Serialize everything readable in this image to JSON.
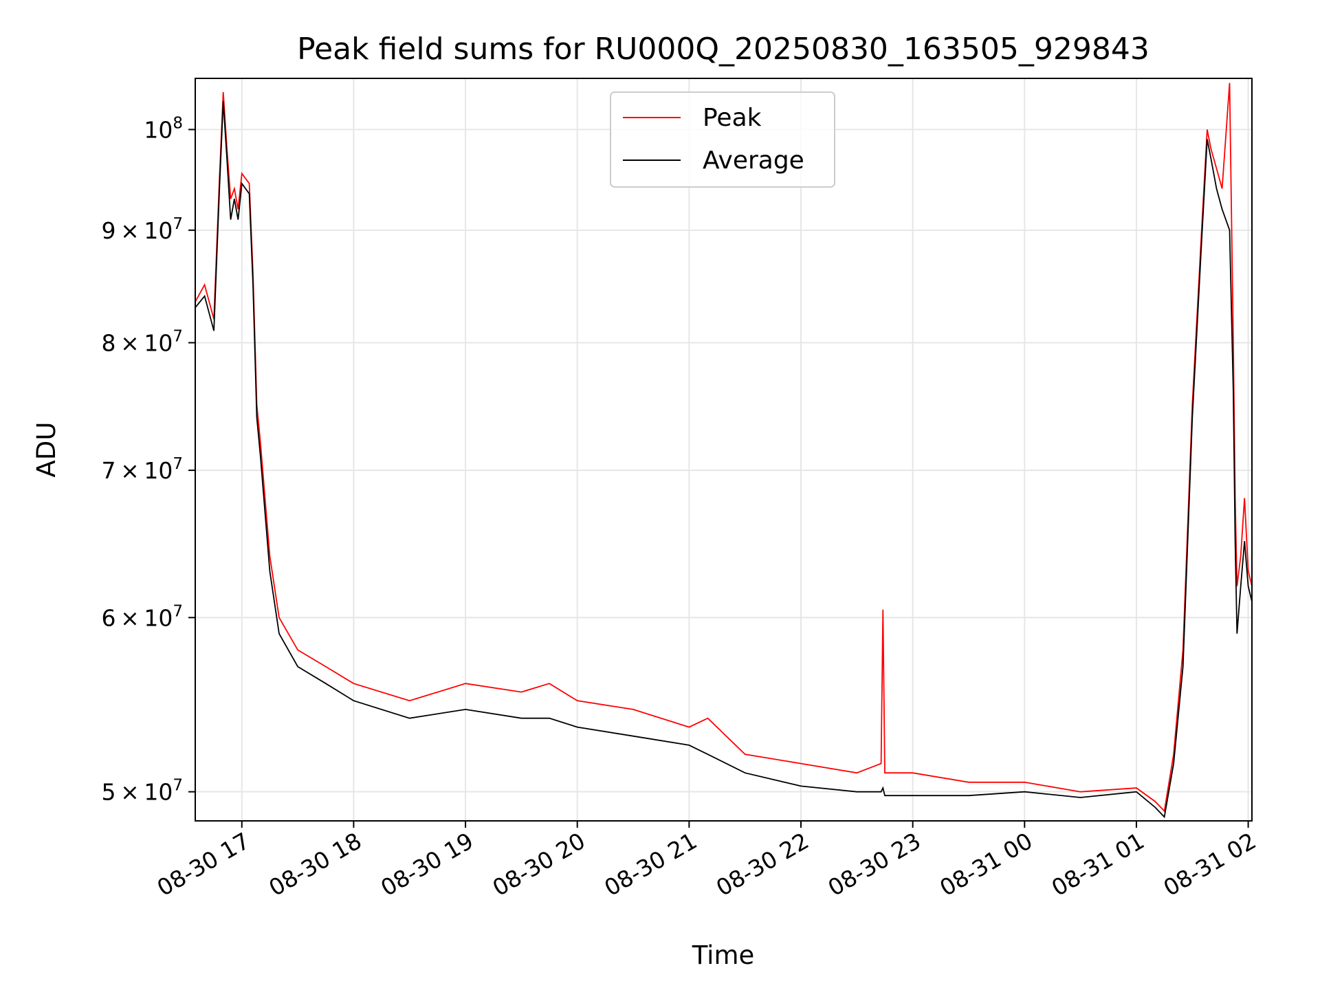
{
  "chart_data": {
    "type": "line",
    "title": "Peak field sums for RU000Q_20250830_163505_929843",
    "xlabel": "Time",
    "ylabel": "ADU",
    "x_scale": "time",
    "y_scale": "log",
    "xlim": [
      "2025-08-30 16:35",
      "2025-08-31 02:02"
    ],
    "ylim": [
      48500000,
      105500000
    ],
    "x_ticks": [
      {
        "value": "2025-08-30 17:00",
        "label": "08-30 17"
      },
      {
        "value": "2025-08-30 18:00",
        "label": "08-30 18"
      },
      {
        "value": "2025-08-30 19:00",
        "label": "08-30 19"
      },
      {
        "value": "2025-08-30 20:00",
        "label": "08-30 20"
      },
      {
        "value": "2025-08-30 21:00",
        "label": "08-30 21"
      },
      {
        "value": "2025-08-30 22:00",
        "label": "08-30 22"
      },
      {
        "value": "2025-08-30 23:00",
        "label": "08-30 23"
      },
      {
        "value": "2025-08-31 00:00",
        "label": "08-31 00"
      },
      {
        "value": "2025-08-31 01:00",
        "label": "08-31 01"
      },
      {
        "value": "2025-08-31 02:00",
        "label": "08-31 02"
      }
    ],
    "y_ticks": [
      {
        "value": 50000000,
        "coef": "5",
        "exp": "7"
      },
      {
        "value": 60000000,
        "coef": "6",
        "exp": "7"
      },
      {
        "value": 70000000,
        "coef": "7",
        "exp": "7"
      },
      {
        "value": 80000000,
        "coef": "8",
        "exp": "7"
      },
      {
        "value": 90000000,
        "coef": "9",
        "exp": "7"
      },
      {
        "value": 100000000,
        "coef": "",
        "exp": "8"
      }
    ],
    "grid": true,
    "legend_position": "top-center",
    "series": [
      {
        "name": "Peak",
        "color": "#ff0000",
        "x": [
          "2025-08-30 16:35",
          "2025-08-30 16:40",
          "2025-08-30 16:45",
          "2025-08-30 16:48",
          "2025-08-30 16:50",
          "2025-08-30 16:52",
          "2025-08-30 16:54",
          "2025-08-30 16:56",
          "2025-08-30 16:58",
          "2025-08-30 17:00",
          "2025-08-30 17:04",
          "2025-08-30 17:06",
          "2025-08-30 17:08",
          "2025-08-30 17:10",
          "2025-08-30 17:15",
          "2025-08-30 17:20",
          "2025-08-30 17:30",
          "2025-08-30 17:45",
          "2025-08-30 18:00",
          "2025-08-30 18:30",
          "2025-08-30 19:00",
          "2025-08-30 19:30",
          "2025-08-30 19:45",
          "2025-08-30 20:00",
          "2025-08-30 20:30",
          "2025-08-30 21:00",
          "2025-08-30 21:10",
          "2025-08-30 21:30",
          "2025-08-30 22:00",
          "2025-08-30 22:30",
          "2025-08-30 22:43",
          "2025-08-30 22:44",
          "2025-08-30 22:45",
          "2025-08-30 23:00",
          "2025-08-30 23:30",
          "2025-08-31 00:00",
          "2025-08-31 00:30",
          "2025-08-31 01:00",
          "2025-08-31 01:10",
          "2025-08-31 01:15",
          "2025-08-31 01:20",
          "2025-08-31 01:25",
          "2025-08-31 01:30",
          "2025-08-31 01:35",
          "2025-08-31 01:38",
          "2025-08-31 01:40",
          "2025-08-31 01:43",
          "2025-08-31 01:46",
          "2025-08-31 01:50",
          "2025-08-31 01:52",
          "2025-08-31 01:53",
          "2025-08-31 01:54",
          "2025-08-31 01:56",
          "2025-08-31 01:58",
          "2025-08-31 02:00",
          "2025-08-31 02:02"
        ],
        "y": [
          83500000,
          85000000,
          82000000,
          95000000,
          104000000,
          98000000,
          93000000,
          94000000,
          92000000,
          95500000,
          94500000,
          86000000,
          75000000,
          72000000,
          64000000,
          60000000,
          58000000,
          57000000,
          56000000,
          55000000,
          56000000,
          55500000,
          56000000,
          55000000,
          54500000,
          53500000,
          54000000,
          52000000,
          51500000,
          51000000,
          51500000,
          60500000,
          51000000,
          51000000,
          50500000,
          50500000,
          50000000,
          50200000,
          49500000,
          49000000,
          52000000,
          58000000,
          75000000,
          90000000,
          100000000,
          98000000,
          96000000,
          94000000,
          105000000,
          80000000,
          68000000,
          62000000,
          64000000,
          68000000,
          63000000,
          62000000
        ]
      },
      {
        "name": "Average",
        "color": "#000000",
        "x": [
          "2025-08-30 16:35",
          "2025-08-30 16:40",
          "2025-08-30 16:45",
          "2025-08-30 16:48",
          "2025-08-30 16:50",
          "2025-08-30 16:52",
          "2025-08-30 16:54",
          "2025-08-30 16:56",
          "2025-08-30 16:58",
          "2025-08-30 17:00",
          "2025-08-30 17:04",
          "2025-08-30 17:06",
          "2025-08-30 17:08",
          "2025-08-30 17:10",
          "2025-08-30 17:15",
          "2025-08-30 17:20",
          "2025-08-30 17:30",
          "2025-08-30 17:45",
          "2025-08-30 18:00",
          "2025-08-30 18:30",
          "2025-08-30 19:00",
          "2025-08-30 19:30",
          "2025-08-30 19:45",
          "2025-08-30 20:00",
          "2025-08-30 20:30",
          "2025-08-30 21:00",
          "2025-08-30 21:10",
          "2025-08-30 21:30",
          "2025-08-30 22:00",
          "2025-08-30 22:30",
          "2025-08-30 22:43",
          "2025-08-30 22:44",
          "2025-08-30 22:45",
          "2025-08-30 23:00",
          "2025-08-30 23:30",
          "2025-08-31 00:00",
          "2025-08-31 00:30",
          "2025-08-31 01:00",
          "2025-08-31 01:10",
          "2025-08-31 01:15",
          "2025-08-31 01:20",
          "2025-08-31 01:25",
          "2025-08-31 01:30",
          "2025-08-31 01:35",
          "2025-08-31 01:38",
          "2025-08-31 01:40",
          "2025-08-31 01:43",
          "2025-08-31 01:46",
          "2025-08-31 01:50",
          "2025-08-31 01:52",
          "2025-08-31 01:53",
          "2025-08-31 01:54",
          "2025-08-31 01:56",
          "2025-08-31 01:58",
          "2025-08-31 02:00",
          "2025-08-31 02:02"
        ],
        "y": [
          83000000,
          84000000,
          81000000,
          94000000,
          103000000,
          97000000,
          91000000,
          93000000,
          91000000,
          94500000,
          93500000,
          85000000,
          74000000,
          71000000,
          63000000,
          59000000,
          57000000,
          56000000,
          55000000,
          54000000,
          54500000,
          54000000,
          54000000,
          53500000,
          53000000,
          52500000,
          52000000,
          51000000,
          50300000,
          50000000,
          50000000,
          50200000,
          49800000,
          49800000,
          49800000,
          50000000,
          49700000,
          50000000,
          49200000,
          48700000,
          51500000,
          57000000,
          74000000,
          89000000,
          99000000,
          97000000,
          94000000,
          92000000,
          90000000,
          76000000,
          65000000,
          59000000,
          62000000,
          65000000,
          62000000,
          61000000
        ]
      }
    ]
  }
}
